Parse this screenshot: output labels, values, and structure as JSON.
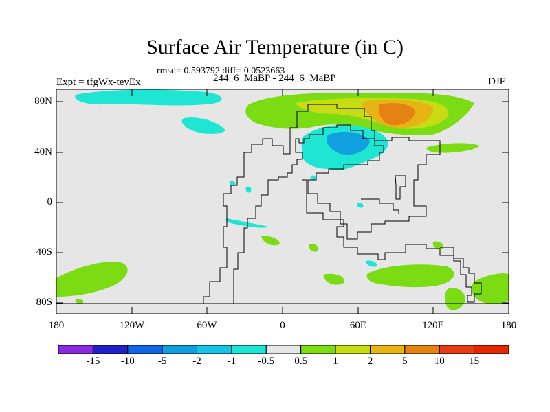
{
  "title": "Surface Air Temperature (in C)",
  "stats": "rmsd= 0.593792 diff= 0.0523663",
  "left_label": "Expt = tfgWx-teyEx",
  "subtitle": "244_6_MaBP - 244_6_MaBP",
  "season": "DJF",
  "map": {
    "lat_labels": [
      "80N",
      "40N",
      "0",
      "40S",
      "80S"
    ],
    "lon_labels": [
      "180",
      "120W",
      "60W",
      "0",
      "60E",
      "120E",
      "180"
    ],
    "background_color": "#e6e6e6"
  },
  "colorbar": {
    "labels": [
      "-15",
      "-10",
      "-5",
      "-2",
      "-1",
      "-0.5",
      "0.5",
      "1",
      "2",
      "5",
      "10",
      "15"
    ],
    "colors": [
      "#8a2be2",
      "#2020c8",
      "#1464e6",
      "#10a0e0",
      "#19c3e6",
      "#1ee6d2",
      "#e6e6e6",
      "#7cdc14",
      "#c8dc14",
      "#e6b414",
      "#e68214",
      "#e63c14",
      "#e62800"
    ]
  }
}
